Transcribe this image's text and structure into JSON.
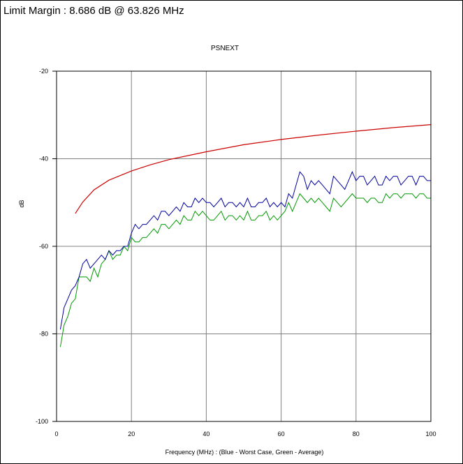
{
  "header": {
    "limit_margin": "Limit Margin : 8.686 dB @ 63.826 MHz"
  },
  "chart_data": {
    "type": "line",
    "title": "PSNEXT",
    "xlabel": "Frequency (MHz) : (Blue - Worst Case, Green - Average)",
    "ylabel": "dB",
    "xlim": [
      0,
      100
    ],
    "ylim": [
      -100,
      -20
    ],
    "x_ticks": [
      "0",
      "20",
      "40",
      "60",
      "80",
      "100"
    ],
    "y_ticks": [
      "-20",
      "-40",
      "-60",
      "-80",
      "-100"
    ],
    "grid": true,
    "colors": {
      "worst_case": "#0000a0",
      "average": "#009900",
      "limit": "#cc0000"
    },
    "limit_line": {
      "x": [
        5,
        7,
        10,
        14,
        20,
        25,
        30,
        40,
        50,
        60,
        70,
        80,
        90,
        100
      ],
      "y": [
        -52.5,
        -49.9,
        -47.1,
        -44.9,
        -42.8,
        -41.4,
        -40.2,
        -38.4,
        -36.8,
        -35.6,
        -34.6,
        -33.7,
        -32.9,
        -32.2
      ]
    },
    "series": [
      {
        "color": "#0000a0",
        "x": [
          1,
          2,
          3,
          4,
          5,
          6,
          7,
          8,
          9,
          10,
          11,
          12,
          13,
          14,
          15,
          16,
          17,
          18,
          19,
          20,
          21,
          22,
          23,
          24,
          25,
          26,
          27,
          28,
          29,
          30,
          31,
          32,
          33,
          34,
          35,
          36,
          37,
          38,
          39,
          40,
          41,
          42,
          43,
          44,
          45,
          46,
          47,
          48,
          49,
          50,
          51,
          52,
          53,
          54,
          55,
          56,
          57,
          58,
          59,
          60,
          61,
          62,
          63,
          64,
          65,
          66,
          67,
          68,
          69,
          70,
          71,
          72,
          73,
          74,
          75,
          76,
          77,
          78,
          79,
          80,
          81,
          82,
          83,
          84,
          85,
          86,
          87,
          88,
          89,
          90,
          91,
          92,
          93,
          94,
          95,
          96,
          97,
          98,
          99,
          100
        ],
        "y": [
          -79,
          -74,
          -72,
          -70,
          -69,
          -67,
          -64,
          -63,
          -65,
          -64,
          -63,
          -62,
          -63,
          -61,
          -62,
          -61,
          -61,
          -60,
          -60,
          -57,
          -55,
          -56,
          -55,
          -55,
          -54,
          -53,
          -54,
          -52,
          -52,
          -53,
          -52,
          -51,
          -52,
          -50,
          -51,
          -51,
          -49,
          -50,
          -49,
          -50,
          -50,
          -51,
          -50,
          -49,
          -51,
          -50,
          -50,
          -51,
          -50,
          -51,
          -49,
          -51,
          -51,
          -50,
          -50,
          -49,
          -51,
          -50,
          -51,
          -50,
          -51,
          -48,
          -49,
          -46,
          -43,
          -44,
          -47,
          -45,
          -46,
          -45,
          -46,
          -47,
          -48,
          -44,
          -45,
          -46,
          -47,
          -45,
          -43,
          -45,
          -44,
          -44,
          -46,
          -45,
          -44,
          -46,
          -46,
          -44,
          -45,
          -44,
          -44,
          -46,
          -45,
          -44,
          -44,
          -46,
          -44,
          -44,
          -45,
          -45
        ]
      },
      {
        "color": "#009900",
        "x": [
          1,
          2,
          3,
          4,
          5,
          6,
          7,
          8,
          9,
          10,
          11,
          12,
          13,
          14,
          15,
          16,
          17,
          18,
          19,
          20,
          21,
          22,
          23,
          24,
          25,
          26,
          27,
          28,
          29,
          30,
          31,
          32,
          33,
          34,
          35,
          36,
          37,
          38,
          39,
          40,
          41,
          42,
          43,
          44,
          45,
          46,
          47,
          48,
          49,
          50,
          51,
          52,
          53,
          54,
          55,
          56,
          57,
          58,
          59,
          60,
          61,
          62,
          63,
          64,
          65,
          66,
          67,
          68,
          69,
          70,
          71,
          72,
          73,
          74,
          75,
          76,
          77,
          78,
          79,
          80,
          81,
          82,
          83,
          84,
          85,
          86,
          87,
          88,
          89,
          90,
          91,
          92,
          93,
          94,
          95,
          96,
          97,
          98,
          99,
          100
        ],
        "y": [
          -83,
          -78,
          -76,
          -73,
          -72,
          -67,
          -67,
          -67,
          -68,
          -65,
          -67,
          -64,
          -63,
          -61,
          -63,
          -62,
          -62,
          -60,
          -61,
          -58,
          -59,
          -59,
          -58,
          -58,
          -57,
          -56,
          -57,
          -55,
          -55,
          -56,
          -55,
          -54,
          -55,
          -53,
          -54,
          -54,
          -52,
          -53,
          -52,
          -53,
          -54,
          -54,
          -53,
          -52,
          -54,
          -53,
          -53,
          -54,
          -53,
          -54,
          -52,
          -54,
          -54,
          -53,
          -53,
          -52,
          -54,
          -53,
          -54,
          -53,
          -52,
          -50,
          -52,
          -50,
          -48,
          -49,
          -50,
          -49,
          -50,
          -49,
          -50,
          -51,
          -52,
          -49,
          -50,
          -51,
          -50,
          -49,
          -48,
          -49,
          -49,
          -49,
          -50,
          -49,
          -49,
          -50,
          -50,
          -48,
          -49,
          -48,
          -48,
          -49,
          -48,
          -48,
          -48,
          -49,
          -48,
          -48,
          -49,
          -49
        ]
      }
    ]
  }
}
